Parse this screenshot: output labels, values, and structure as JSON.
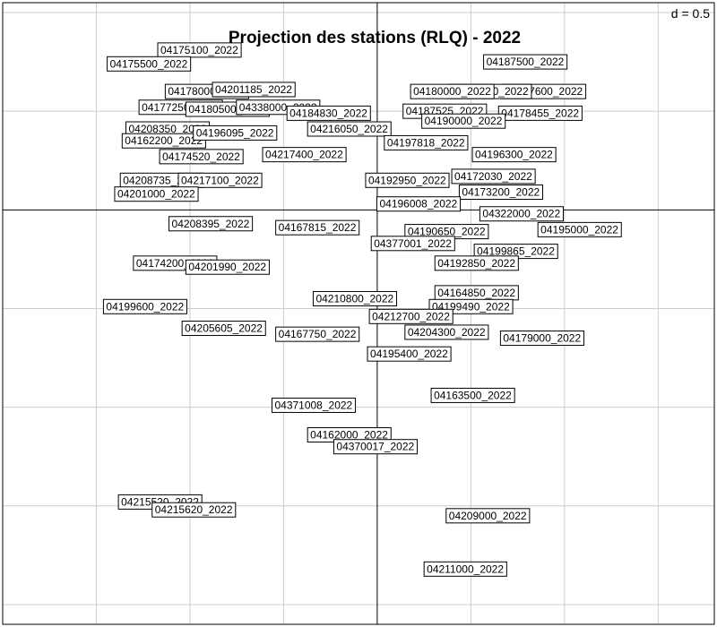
{
  "chart_data": {
    "type": "scatter",
    "title": "Projection des stations (RLQ) - 2022",
    "grid_label": "d = 0.5",
    "grid_step": 0.5,
    "grid": true,
    "xlim": [
      -2.0,
      1.8
    ],
    "ylim": [
      -2.1,
      1.05
    ],
    "colors": {
      "grid": "#cccccc",
      "axis": "#000000",
      "frame": "#000000",
      "box": "#000000",
      "background": "#ffffff"
    },
    "points": [
      {
        "label": "04175100_2022",
        "x": -0.95,
        "y": 0.81
      },
      {
        "label": "04175500_2022",
        "x": -1.22,
        "y": 0.74
      },
      {
        "label": "04187500_2022",
        "x": 0.79,
        "y": 0.75
      },
      {
        "label": "04178000_2022",
        "x": -0.91,
        "y": 0.6
      },
      {
        "label": "04201185_2022",
        "x": -0.66,
        "y": 0.61
      },
      {
        "label": "04187600_2022",
        "x": 0.89,
        "y": 0.6
      },
      {
        "label": "04182000_2022",
        "x": 0.6,
        "y": 0.6
      },
      {
        "label": "04180000_2022",
        "x": 0.4,
        "y": 0.6
      },
      {
        "label": "04177250_2022",
        "x": -1.05,
        "y": 0.52
      },
      {
        "label": "04180500_2022",
        "x": -0.8,
        "y": 0.51
      },
      {
        "label": "04338000_2022",
        "x": -0.53,
        "y": 0.52
      },
      {
        "label": "04184830_2022",
        "x": -0.26,
        "y": 0.49
      },
      {
        "label": "04187525_2022",
        "x": 0.36,
        "y": 0.5
      },
      {
        "label": "04178455_2022",
        "x": 0.87,
        "y": 0.49
      },
      {
        "label": "04190000_2022",
        "x": 0.46,
        "y": 0.45
      },
      {
        "label": "04208350_2022",
        "x": -1.12,
        "y": 0.41
      },
      {
        "label": "04162200_2022",
        "x": -1.14,
        "y": 0.35
      },
      {
        "label": "04196095_2022",
        "x": -0.76,
        "y": 0.39
      },
      {
        "label": "04216050_2022",
        "x": -0.15,
        "y": 0.41
      },
      {
        "label": "04197818_2022",
        "x": 0.26,
        "y": 0.34
      },
      {
        "label": "04174520_2022",
        "x": -0.94,
        "y": 0.27
      },
      {
        "label": "04217400_2022",
        "x": -0.39,
        "y": 0.28
      },
      {
        "label": "04196300_2022",
        "x": 0.73,
        "y": 0.28
      },
      {
        "label": "04208735_2022",
        "x": -1.15,
        "y": 0.15
      },
      {
        "label": "04217100_2022",
        "x": -0.84,
        "y": 0.15
      },
      {
        "label": "04192950_2022",
        "x": 0.16,
        "y": 0.15
      },
      {
        "label": "04172030_2022",
        "x": 0.62,
        "y": 0.17
      },
      {
        "label": "04201000_2022",
        "x": -1.18,
        "y": 0.08
      },
      {
        "label": "04173200_2022",
        "x": 0.66,
        "y": 0.09
      },
      {
        "label": "04196008_2022",
        "x": 0.22,
        "y": 0.03
      },
      {
        "label": "04322000_2022",
        "x": 0.77,
        "y": -0.02
      },
      {
        "label": "04208395_2022",
        "x": -0.89,
        "y": -0.07
      },
      {
        "label": "04167815_2022",
        "x": -0.32,
        "y": -0.09
      },
      {
        "label": "04190650_2022",
        "x": 0.37,
        "y": -0.11
      },
      {
        "label": "04195000_2022",
        "x": 1.08,
        "y": -0.1
      },
      {
        "label": "04377001_2022",
        "x": 0.19,
        "y": -0.17
      },
      {
        "label": "04199865_2022",
        "x": 0.74,
        "y": -0.21
      },
      {
        "label": "04192850_2022",
        "x": 0.53,
        "y": -0.27
      },
      {
        "label": "04174200_2022",
        "x": -1.08,
        "y": -0.27
      },
      {
        "label": "04201990_2022",
        "x": -0.8,
        "y": -0.29
      },
      {
        "label": "04164850_2022",
        "x": 0.53,
        "y": -0.42
      },
      {
        "label": "04210800_2022",
        "x": -0.12,
        "y": -0.45
      },
      {
        "label": "04199490_2022",
        "x": 0.5,
        "y": -0.49
      },
      {
        "label": "04199600_2022",
        "x": -1.24,
        "y": -0.49
      },
      {
        "label": "04212700_2022",
        "x": 0.18,
        "y": -0.54
      },
      {
        "label": "04205605_2022",
        "x": -0.82,
        "y": -0.6
      },
      {
        "label": "04204300_2022",
        "x": 0.37,
        "y": -0.62
      },
      {
        "label": "04167750_2022",
        "x": -0.32,
        "y": -0.63
      },
      {
        "label": "04179000_2022",
        "x": 0.88,
        "y": -0.65
      },
      {
        "label": "04195400_2022",
        "x": 0.17,
        "y": -0.73
      },
      {
        "label": "04163500_2022",
        "x": 0.51,
        "y": -0.94
      },
      {
        "label": "04371008_2022",
        "x": -0.34,
        "y": -0.99
      },
      {
        "label": "04162000_2022",
        "x": -0.15,
        "y": -1.14
      },
      {
        "label": "04370017_2022",
        "x": -0.01,
        "y": -1.2
      },
      {
        "label": "04215520_2022",
        "x": -1.16,
        "y": -1.48
      },
      {
        "label": "04215620_2022",
        "x": -0.98,
        "y": -1.52
      },
      {
        "label": "04209000_2022",
        "x": 0.59,
        "y": -1.55
      },
      {
        "label": "04211000_2022",
        "x": 0.47,
        "y": -1.82
      }
    ]
  }
}
